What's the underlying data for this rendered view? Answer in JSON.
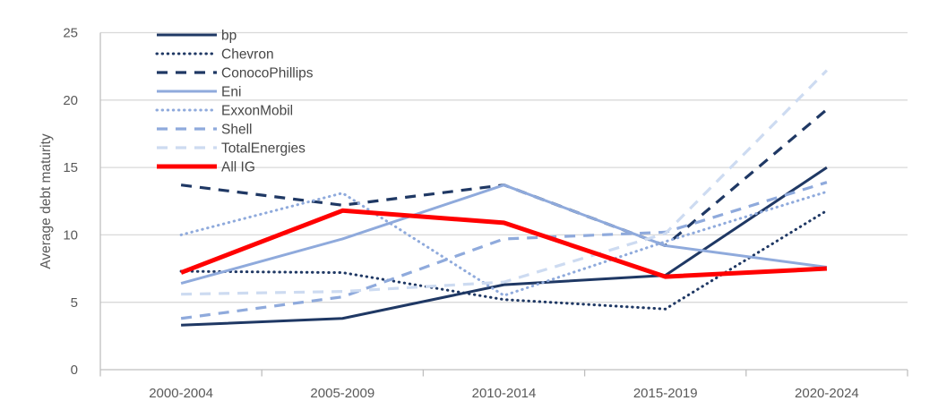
{
  "figure": {
    "background": "#ffffff",
    "axis_line_color": "#bfbfbf",
    "gridline_color": "#d9d9d9",
    "tick_label_color": "#595959",
    "legend_text_color": "#474747",
    "palette": {
      "dark_navy": "#1f3864",
      "medium_blue": "#8faadc",
      "pale_blue": "#cddbf1",
      "red": "#ff0000"
    }
  },
  "chart_data": {
    "type": "line",
    "ylabel": "Average debt maturity",
    "xlabel": "",
    "categories": [
      "2000-2004",
      "2005-2009",
      "2010-2014",
      "2015-2019",
      "2020-2024"
    ],
    "y_ticks": [
      0,
      5,
      10,
      15,
      20,
      25
    ],
    "ylim": [
      0,
      25
    ],
    "grid": "horizontal-only",
    "legend_position": "top-left-inside",
    "series": [
      {
        "name": "bp",
        "color": "#1f3864",
        "style": "solid",
        "width": 3,
        "values": [
          3.3,
          3.8,
          6.3,
          7.0,
          15.0
        ]
      },
      {
        "name": "Chevron",
        "color": "#1f3864",
        "style": "dotted",
        "width": 3,
        "values": [
          7.3,
          7.2,
          5.2,
          4.5,
          11.8
        ]
      },
      {
        "name": "ConocoPhillips",
        "color": "#1f3864",
        "style": "dashed",
        "width": 3.2,
        "values": [
          13.7,
          12.2,
          13.7,
          9.2,
          19.3
        ]
      },
      {
        "name": "Eni",
        "color": "#8faadc",
        "style": "solid",
        "width": 3,
        "values": [
          6.4,
          9.7,
          13.7,
          9.2,
          7.6
        ]
      },
      {
        "name": "ExxonMobil",
        "color": "#8faadc",
        "style": "dotted",
        "width": 3,
        "values": [
          10.0,
          13.1,
          5.5,
          9.5,
          13.2
        ]
      },
      {
        "name": "Shell",
        "color": "#8faadc",
        "style": "dashed",
        "width": 3.2,
        "values": [
          3.8,
          5.4,
          9.7,
          10.2,
          13.9
        ]
      },
      {
        "name": "TotalEnergies",
        "color": "#cddbf1",
        "style": "dashed",
        "width": 3.2,
        "values": [
          5.6,
          5.8,
          6.5,
          10.1,
          22.2
        ]
      },
      {
        "name": "All IG",
        "color": "#ff0000",
        "style": "solid",
        "width": 5,
        "values": [
          7.2,
          11.8,
          10.9,
          6.9,
          7.5
        ]
      }
    ]
  }
}
